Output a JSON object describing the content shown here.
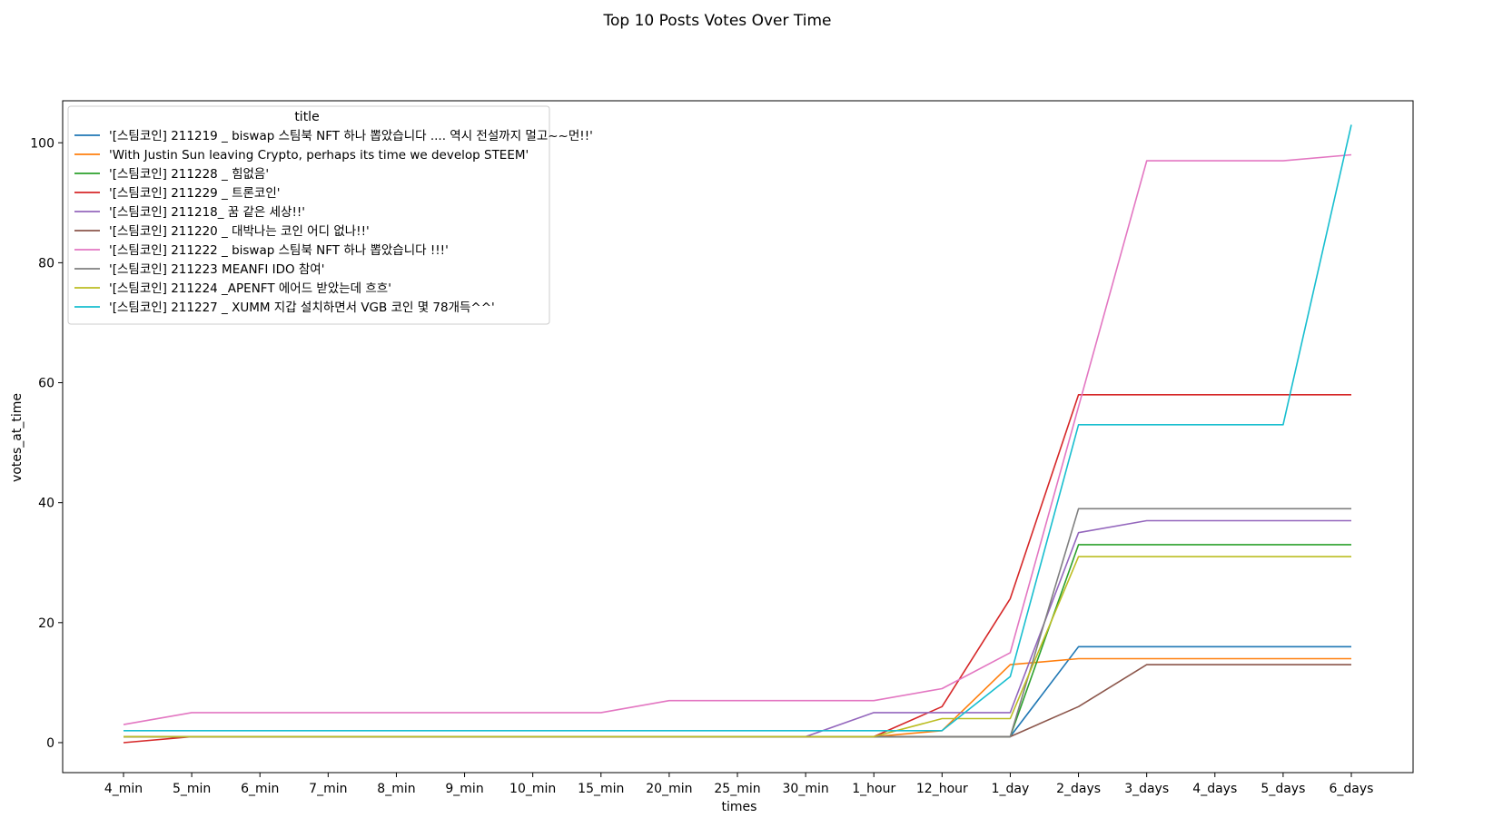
{
  "chart_data": {
    "type": "line",
    "title": "Top 10 Posts Votes Over Time",
    "xlabel": "times",
    "ylabel": "votes_at_time",
    "legend_title": "title",
    "legend_position": "top-left",
    "grid": false,
    "ylim": [
      -5,
      107
    ],
    "yticks": [
      0,
      20,
      40,
      60,
      80,
      100
    ],
    "categories": [
      "4_min",
      "5_min",
      "6_min",
      "7_min",
      "8_min",
      "9_min",
      "10_min",
      "15_min",
      "20_min",
      "25_min",
      "30_min",
      "1_hour",
      "12_hour",
      "1_day",
      "2_days",
      "3_days",
      "4_days",
      "5_days",
      "6_days"
    ],
    "series": [
      {
        "name": "'[스팀코인] 211219 _ biswap 스팀북 NFT 하나 뽑았습니다  .... 역시 전설까지 멀고~~먼!!'",
        "color": "#1f77b4",
        "values": [
          1,
          1,
          1,
          1,
          1,
          1,
          1,
          1,
          1,
          1,
          1,
          1,
          1,
          1,
          16,
          16,
          16,
          16,
          16
        ]
      },
      {
        "name": "'With Justin Sun leaving Crypto, perhaps its time we develop STEEM'",
        "color": "#ff7f0e",
        "values": [
          1,
          1,
          1,
          1,
          1,
          1,
          1,
          1,
          1,
          1,
          1,
          1,
          2,
          13,
          14,
          14,
          14,
          14,
          14
        ]
      },
      {
        "name": "'[스팀코인] 211228 _ 힘없음'",
        "color": "#2ca02c",
        "values": [
          1,
          1,
          1,
          1,
          1,
          1,
          1,
          1,
          1,
          1,
          1,
          1,
          1,
          1,
          33,
          33,
          33,
          33,
          33
        ]
      },
      {
        "name": "'[스팀코인] 211229 _  트론코인'",
        "color": "#d62728",
        "values": [
          0,
          1,
          1,
          1,
          1,
          1,
          1,
          1,
          1,
          1,
          1,
          1,
          6,
          24,
          58,
          58,
          58,
          58,
          58
        ]
      },
      {
        "name": "'[스팀코인] 211218_ 꿈 같은 세상!!'",
        "color": "#9467bd",
        "values": [
          1,
          1,
          1,
          1,
          1,
          1,
          1,
          1,
          1,
          1,
          1,
          5,
          5,
          5,
          35,
          37,
          37,
          37,
          37
        ]
      },
      {
        "name": "'[스팀코인] 211220 _ 대박나는 코인 어디 없나!!'",
        "color": "#8c564b",
        "values": [
          1,
          1,
          1,
          1,
          1,
          1,
          1,
          1,
          1,
          1,
          1,
          1,
          1,
          1,
          6,
          13,
          13,
          13,
          13
        ]
      },
      {
        "name": "'[스팀코인] 211222 _ biswap 스팀북 NFT 하나 뽑았습니다 !!!'",
        "color": "#e377c2",
        "values": [
          3,
          5,
          5,
          5,
          5,
          5,
          5,
          5,
          7,
          7,
          7,
          7,
          9,
          15,
          56,
          97,
          97,
          97,
          98
        ]
      },
      {
        "name": "'[스팀코인]  211223  MEANFI IDO  참여'",
        "color": "#7f7f7f",
        "values": [
          1,
          1,
          1,
          1,
          1,
          1,
          1,
          1,
          1,
          1,
          1,
          1,
          1,
          1,
          39,
          39,
          39,
          39,
          39
        ]
      },
      {
        "name": "'[스팀코인]  211224 _APENFT 에어드 받았는데 흐흐'",
        "color": "#bcbd22",
        "values": [
          1,
          1,
          1,
          1,
          1,
          1,
          1,
          1,
          1,
          1,
          1,
          1,
          4,
          4,
          31,
          31,
          31,
          31,
          31
        ]
      },
      {
        "name": "'[스팀코인]  211227 _ XUMM 지갑 설치하면서 VGB 코인 몇 78개득^^'",
        "color": "#17becf",
        "values": [
          2,
          2,
          2,
          2,
          2,
          2,
          2,
          2,
          2,
          2,
          2,
          2,
          2,
          11,
          53,
          53,
          53,
          53,
          103
        ]
      }
    ]
  }
}
